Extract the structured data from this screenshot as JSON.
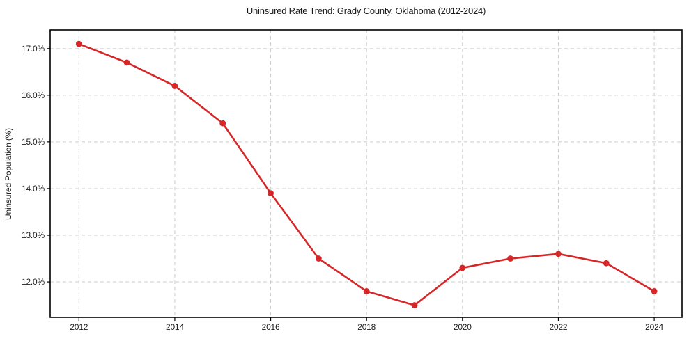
{
  "chart_data": {
    "type": "line",
    "title": "Uninsured Rate Trend: Grady County, Oklahoma (2012-2024)",
    "xlabel": "",
    "ylabel": "Uninsured Population (%)",
    "series": [
      {
        "name": "Uninsured Population (%)",
        "x": [
          2012,
          2013,
          2014,
          2015,
          2016,
          2017,
          2018,
          2019,
          2020,
          2021,
          2022,
          2023,
          2024
        ],
        "values": [
          17.1,
          16.7,
          16.2,
          15.4,
          13.9,
          12.5,
          11.8,
          11.5,
          12.3,
          12.5,
          12.6,
          12.4,
          11.8
        ]
      }
    ],
    "xlim": [
      2011.4,
      2024.58
    ],
    "ylim": [
      11.24,
      17.4
    ],
    "x_ticks": [
      2012,
      2014,
      2016,
      2018,
      2020,
      2022,
      2024
    ],
    "x_tick_labels": [
      "2012",
      "2014",
      "2016",
      "2018",
      "2020",
      "2022",
      "2024"
    ],
    "y_ticks": [
      12,
      13,
      14,
      15,
      16,
      17
    ],
    "y_tick_labels": [
      "12.0%",
      "13.0%",
      "14.0%",
      "15.0%",
      "16.0%",
      "17.0%"
    ],
    "grid": true,
    "legend": "none",
    "colors": {
      "line": "#d62728",
      "marker": "#d62728",
      "grid": "#cccccc",
      "spine": "#000000",
      "text": "#1a1a1a",
      "background": "#ffffff"
    }
  }
}
